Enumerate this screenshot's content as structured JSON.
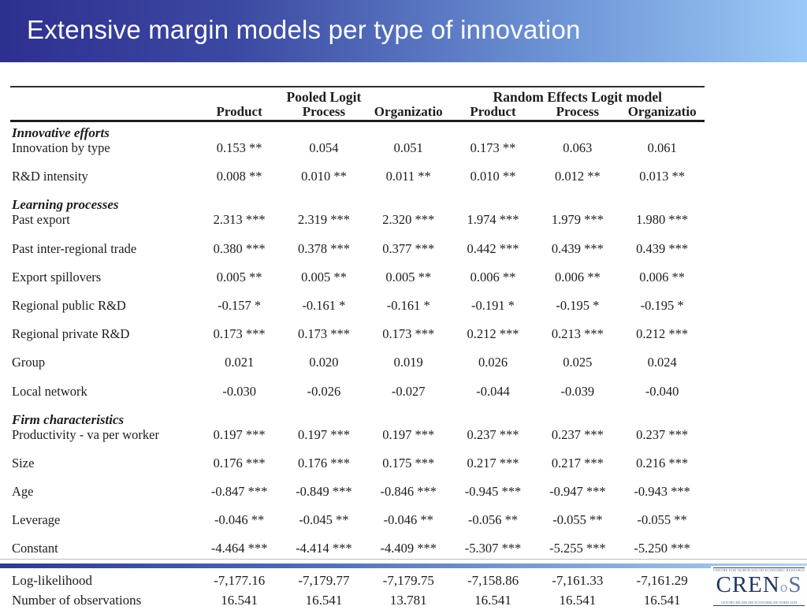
{
  "slide": {
    "title": "Extensive margin models per type of innovation"
  },
  "colors": {
    "title_gradient_left": "#2e2f8f",
    "title_gradient_right": "#9bc9f7",
    "title_text": "#ffffff",
    "table_text": "#1c1c1c",
    "divider_bar_left": "#2b3a96",
    "divider_bar_right": "#b3d2ef",
    "logo_navy": "#24365e"
  },
  "table": {
    "groups": [
      {
        "label": "Pooled Logit",
        "span": 3
      },
      {
        "label": "Random Effects Logit model",
        "span": 3
      }
    ],
    "col_headers": [
      "Product",
      "Process",
      "Organizatio",
      "Product",
      "Process",
      "Organizatio"
    ],
    "rows": [
      {
        "kind": "section",
        "label": "Innovative efforts"
      },
      {
        "kind": "data",
        "label": "Innovation by type",
        "cells": [
          "0.153 **",
          "0.054",
          "0.051",
          "0.173 **",
          "0.063",
          "0.061"
        ]
      },
      {
        "kind": "data",
        "label": "R&D intensity",
        "cells": [
          "0.008 **",
          "0.010 **",
          "0.011 **",
          "0.010 **",
          "0.012 **",
          "0.013 **"
        ]
      },
      {
        "kind": "section",
        "label": "Learning processes"
      },
      {
        "kind": "data",
        "label": "Past export",
        "cells": [
          "2.313 ***",
          "2.319 ***",
          "2.320 ***",
          "1.974 ***",
          "1.979 ***",
          "1.980 ***"
        ]
      },
      {
        "kind": "data",
        "label": "Past inter-regional trade",
        "cells": [
          "0.380 ***",
          "0.378 ***",
          "0.377 ***",
          "0.442 ***",
          "0.439 ***",
          "0.439 ***"
        ]
      },
      {
        "kind": "data",
        "label": "Export spillovers",
        "cells": [
          "0.005 **",
          "0.005 **",
          "0.005 **",
          "0.006 **",
          "0.006 **",
          "0.006 **"
        ]
      },
      {
        "kind": "data",
        "label": "Regional public R&D",
        "cells": [
          "-0.157 *",
          "-0.161 *",
          "-0.161 *",
          "-0.191 *",
          "-0.195 *",
          "-0.195 *"
        ]
      },
      {
        "kind": "data",
        "label": "Regional private R&D",
        "cells": [
          "0.173 ***",
          "0.173 ***",
          "0.173 ***",
          "0.212 ***",
          "0.213 ***",
          "0.212 ***"
        ]
      },
      {
        "kind": "data",
        "label": "Group",
        "cells": [
          "0.021",
          "0.020",
          "0.019",
          "0.026",
          "0.025",
          "0.024"
        ]
      },
      {
        "kind": "data",
        "label": "Local network",
        "cells": [
          "-0.030",
          "-0.026",
          "-0.027",
          "-0.044",
          "-0.039",
          "-0.040"
        ]
      },
      {
        "kind": "section",
        "label": "Firm characteristics"
      },
      {
        "kind": "data",
        "label": "Productivity - va per worker",
        "cells": [
          "0.197 ***",
          "0.197 ***",
          "0.197 ***",
          "0.237 ***",
          "0.237 ***",
          "0.237 ***"
        ]
      },
      {
        "kind": "data",
        "label": "Size",
        "cells": [
          "0.176 ***",
          "0.176 ***",
          "0.175 ***",
          "0.217 ***",
          "0.217 ***",
          "0.216 ***"
        ]
      },
      {
        "kind": "data",
        "label": "Age",
        "cells": [
          "-0.847 ***",
          "-0.849 ***",
          "-0.846 ***",
          "-0.945 ***",
          "-0.947 ***",
          "-0.943 ***"
        ]
      },
      {
        "kind": "data",
        "label": "Leverage",
        "cells": [
          "-0.046 **",
          "-0.045 **",
          "-0.046 **",
          "-0.056 **",
          "-0.055 **",
          "-0.055 **"
        ]
      },
      {
        "kind": "data",
        "label": "Constant",
        "cells": [
          "-4.464 ***",
          "-4.414 ***",
          "-4.409 ***",
          "-5.307 ***",
          "-5.255 ***",
          "-5.250 ***"
        ]
      }
    ],
    "stats": [
      {
        "label": "Log-likelihood",
        "cells": [
          "-7,177.16",
          "-7,179.77",
          "-7,179.75",
          "-7,158.86",
          "-7,161.33",
          "-7,161.29"
        ]
      },
      {
        "label": "Number of observations",
        "cells": [
          "16.541",
          "16.541",
          "13.781",
          "16.541",
          "16.541",
          "16.541"
        ]
      }
    ]
  },
  "logo": {
    "top_text": "CENTRE FOR NORTH SOUTH ECONOMIC RESEARCH",
    "name_c": "CREN",
    "name_o": "o",
    "name_s": "S",
    "bottom_text": "CENTRO RICERCHE ECONOMICHE NORD SUD"
  }
}
